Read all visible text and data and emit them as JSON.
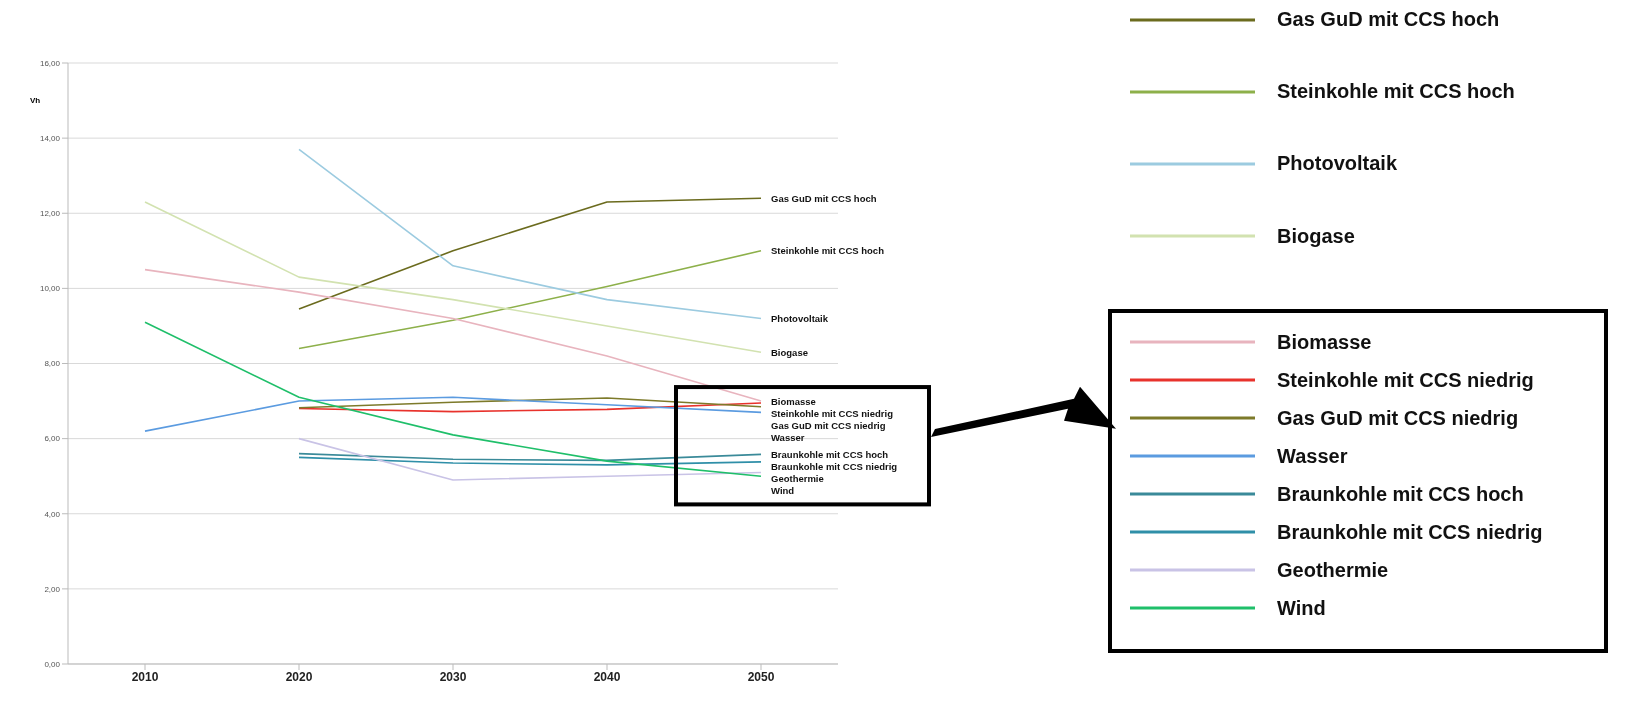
{
  "chart_data": {
    "type": "line",
    "ylabel": "Vh",
    "categories": [
      "2010",
      "2020",
      "2030",
      "2040",
      "2050"
    ],
    "ylim": [
      0,
      16
    ],
    "yticks": [
      {
        "value": 0,
        "label": "0,00"
      },
      {
        "value": 2,
        "label": "2,00"
      },
      {
        "value": 4,
        "label": "4,00"
      },
      {
        "value": 6,
        "label": "6,00"
      },
      {
        "value": 8,
        "label": "8,00"
      },
      {
        "value": 10,
        "label": "10,00"
      },
      {
        "value": 12,
        "label": "12,00"
      },
      {
        "value": 14,
        "label": "14,00"
      },
      {
        "value": 16,
        "label": "16,00"
      }
    ],
    "grid": "y",
    "legend": "right",
    "marker": "none",
    "line_style": "solid",
    "series": [
      {
        "name": "Gas GuD mit CCS hoch",
        "color": "#6b6b1e",
        "values": [
          null,
          9.45,
          11.0,
          12.3,
          12.4
        ]
      },
      {
        "name": "Steinkohle mit CCS hoch",
        "color": "#8db04a",
        "values": [
          null,
          8.4,
          9.15,
          10.05,
          11.0
        ]
      },
      {
        "name": "Photovoltaik",
        "color": "#9ccbe0",
        "values": [
          null,
          13.7,
          10.6,
          9.7,
          9.2
        ]
      },
      {
        "name": "Biogase",
        "color": "#d2e2b0",
        "values": [
          12.3,
          10.3,
          9.7,
          9.0,
          8.3
        ]
      },
      {
        "name": "Biomasse",
        "color": "#e8b4be",
        "values": [
          10.5,
          9.9,
          9.2,
          8.2,
          7.0
        ]
      },
      {
        "name": "Steinkohle mit CCS niedrig",
        "color": "#e8322c",
        "values": [
          null,
          6.8,
          6.72,
          6.78,
          6.95
        ]
      },
      {
        "name": "Gas GuD mit CCS niedrig",
        "color": "#7d7a2a",
        "values": [
          null,
          6.82,
          6.97,
          7.08,
          6.85
        ]
      },
      {
        "name": "Wasser",
        "color": "#5b9be0",
        "values": [
          6.2,
          7.0,
          7.1,
          6.9,
          6.7
        ]
      },
      {
        "name": "Braunkohle mit CCS hoch",
        "color": "#3a8a99",
        "values": [
          null,
          5.6,
          5.45,
          5.42,
          5.58
        ]
      },
      {
        "name": "Braunkohle mit CCS niedrig",
        "color": "#2f8fa8",
        "values": [
          null,
          5.5,
          5.35,
          5.3,
          5.38
        ]
      },
      {
        "name": "Geothermie",
        "color": "#c9c3e6",
        "values": [
          null,
          6.0,
          4.9,
          5.0,
          5.1
        ]
      },
      {
        "name": "Wind",
        "color": "#1fbf6a",
        "values": [
          9.1,
          7.1,
          6.1,
          5.4,
          5.0
        ]
      }
    ]
  }
}
